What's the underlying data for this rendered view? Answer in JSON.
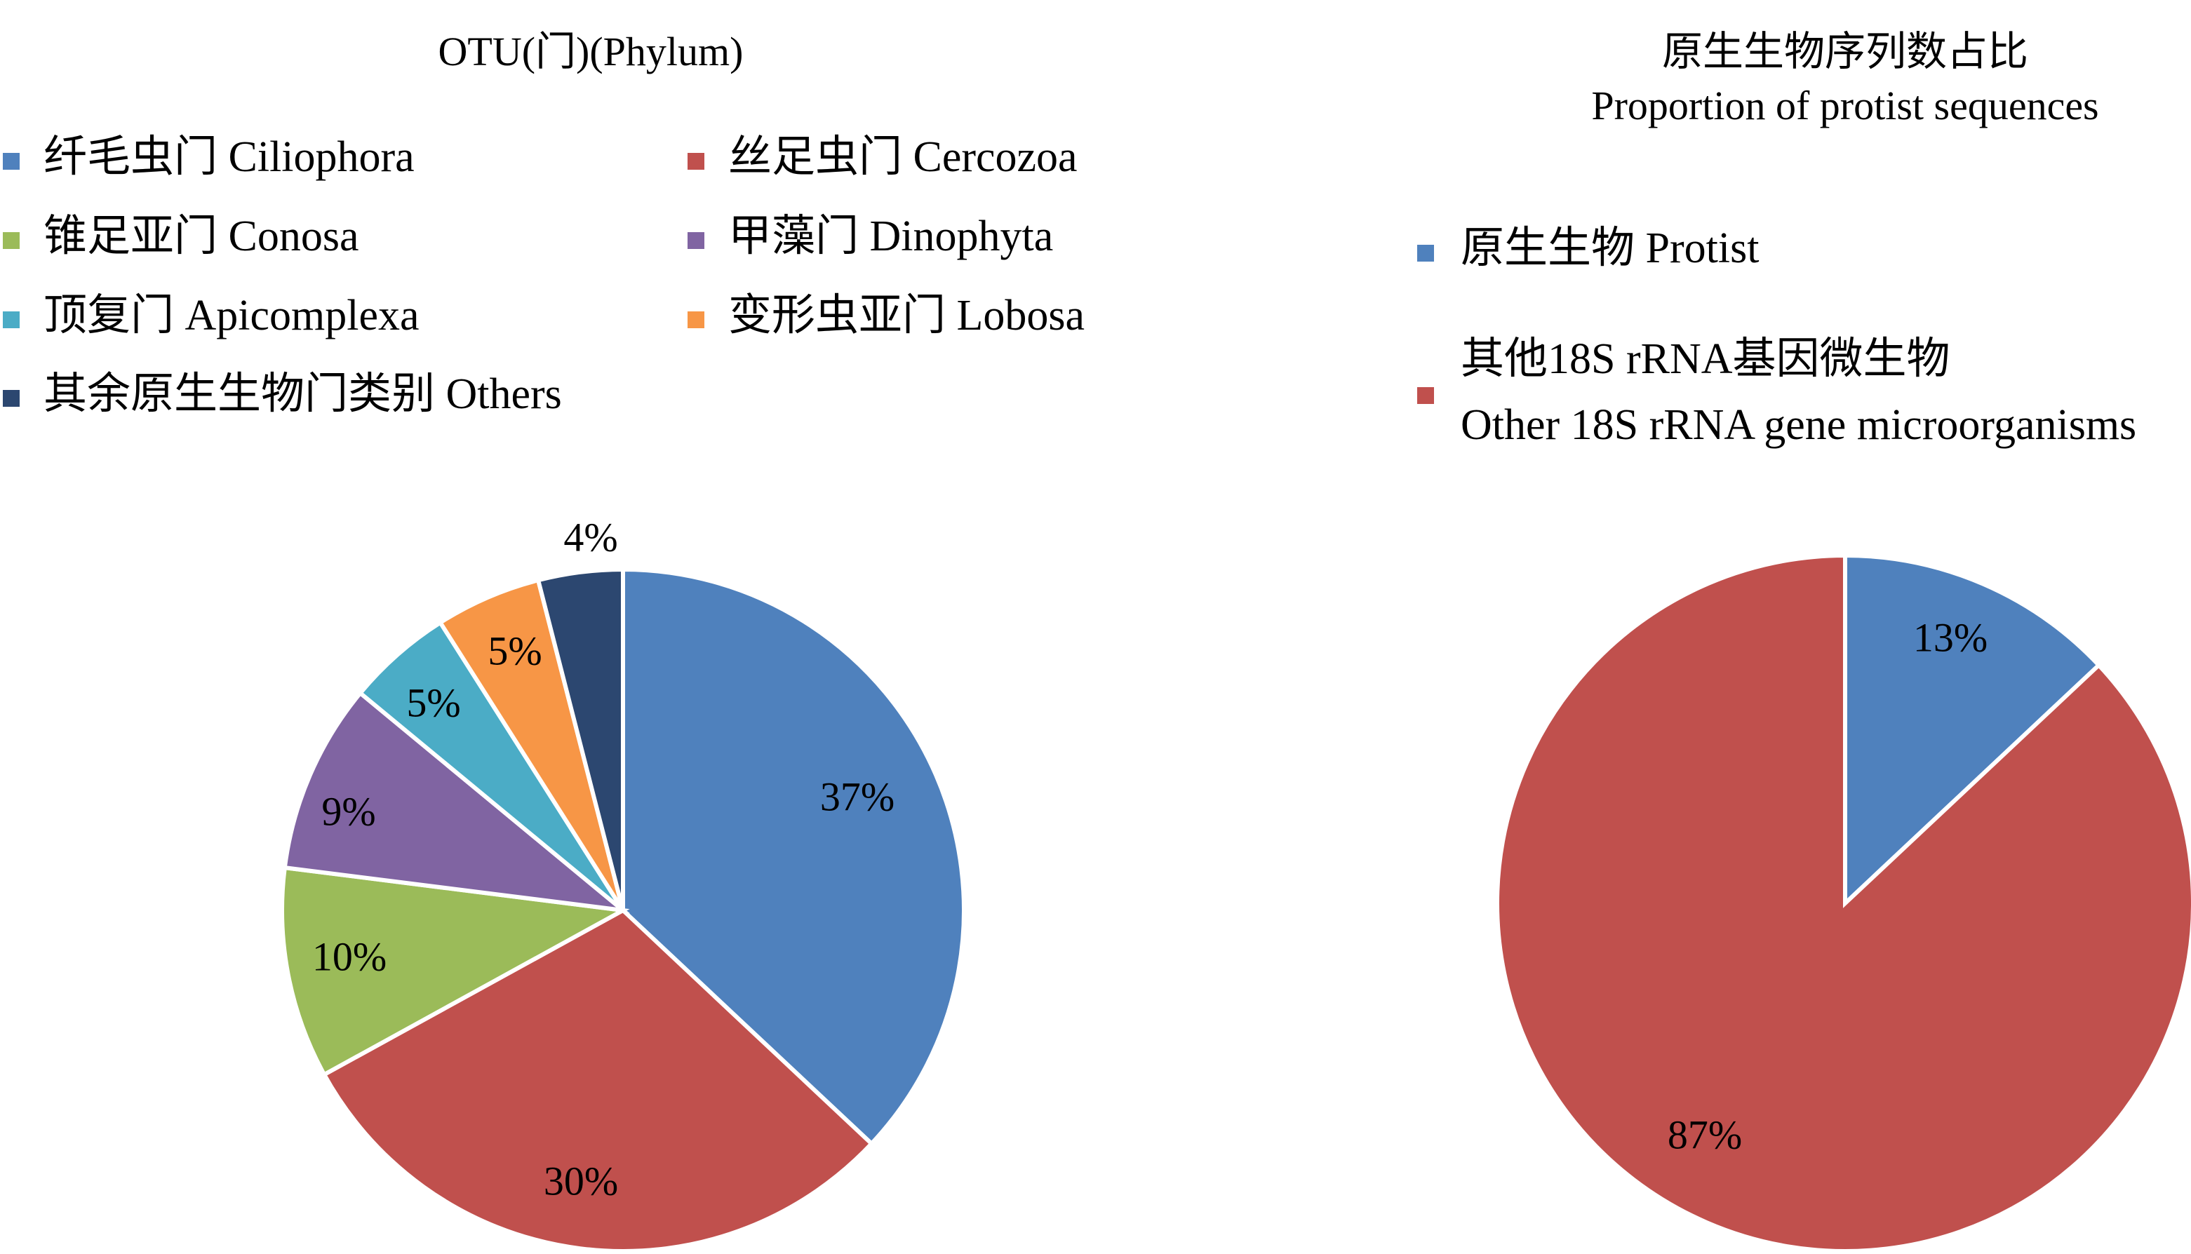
{
  "chart_data": [
    {
      "type": "pie",
      "title": "OTU(门)(Phylum)",
      "legend_position": "top",
      "categories": [
        "纤毛虫门 Ciliophora",
        "丝足虫门 Cercozoa",
        "锥足亚门 Conosa",
        "甲藻门 Dinophyta",
        "顶复门 Apicomplexa",
        "变形虫亚门 Lobosa",
        "其余原生生物门类别 Others"
      ],
      "values": [
        37,
        30,
        10,
        9,
        5,
        5,
        4
      ],
      "labels": [
        "37%",
        "30%",
        "10%",
        "9%",
        "5%",
        "5%",
        "4%"
      ],
      "colors": [
        "#4f81bd",
        "#c0504d",
        "#9bbb59",
        "#8064a2",
        "#4bacc6",
        "#f79646",
        "#2c4770"
      ]
    },
    {
      "type": "pie",
      "title": "原生生物序列数占比",
      "subtitle": "Proportion of protist sequences",
      "legend_position": "top",
      "categories": [
        "原生生物 Protist",
        "其他18S rRNA基因微生物 Other 18S rRNA gene microorganisms"
      ],
      "legend_lines": [
        [
          "原生生物 Protist"
        ],
        [
          "其他18S rRNA基因微生物",
          "Other 18S rRNA gene microorganisms"
        ]
      ],
      "values": [
        13,
        87
      ],
      "labels": [
        "13%",
        "87%"
      ],
      "colors": [
        "#4f81bd",
        "#c0504d"
      ]
    }
  ]
}
